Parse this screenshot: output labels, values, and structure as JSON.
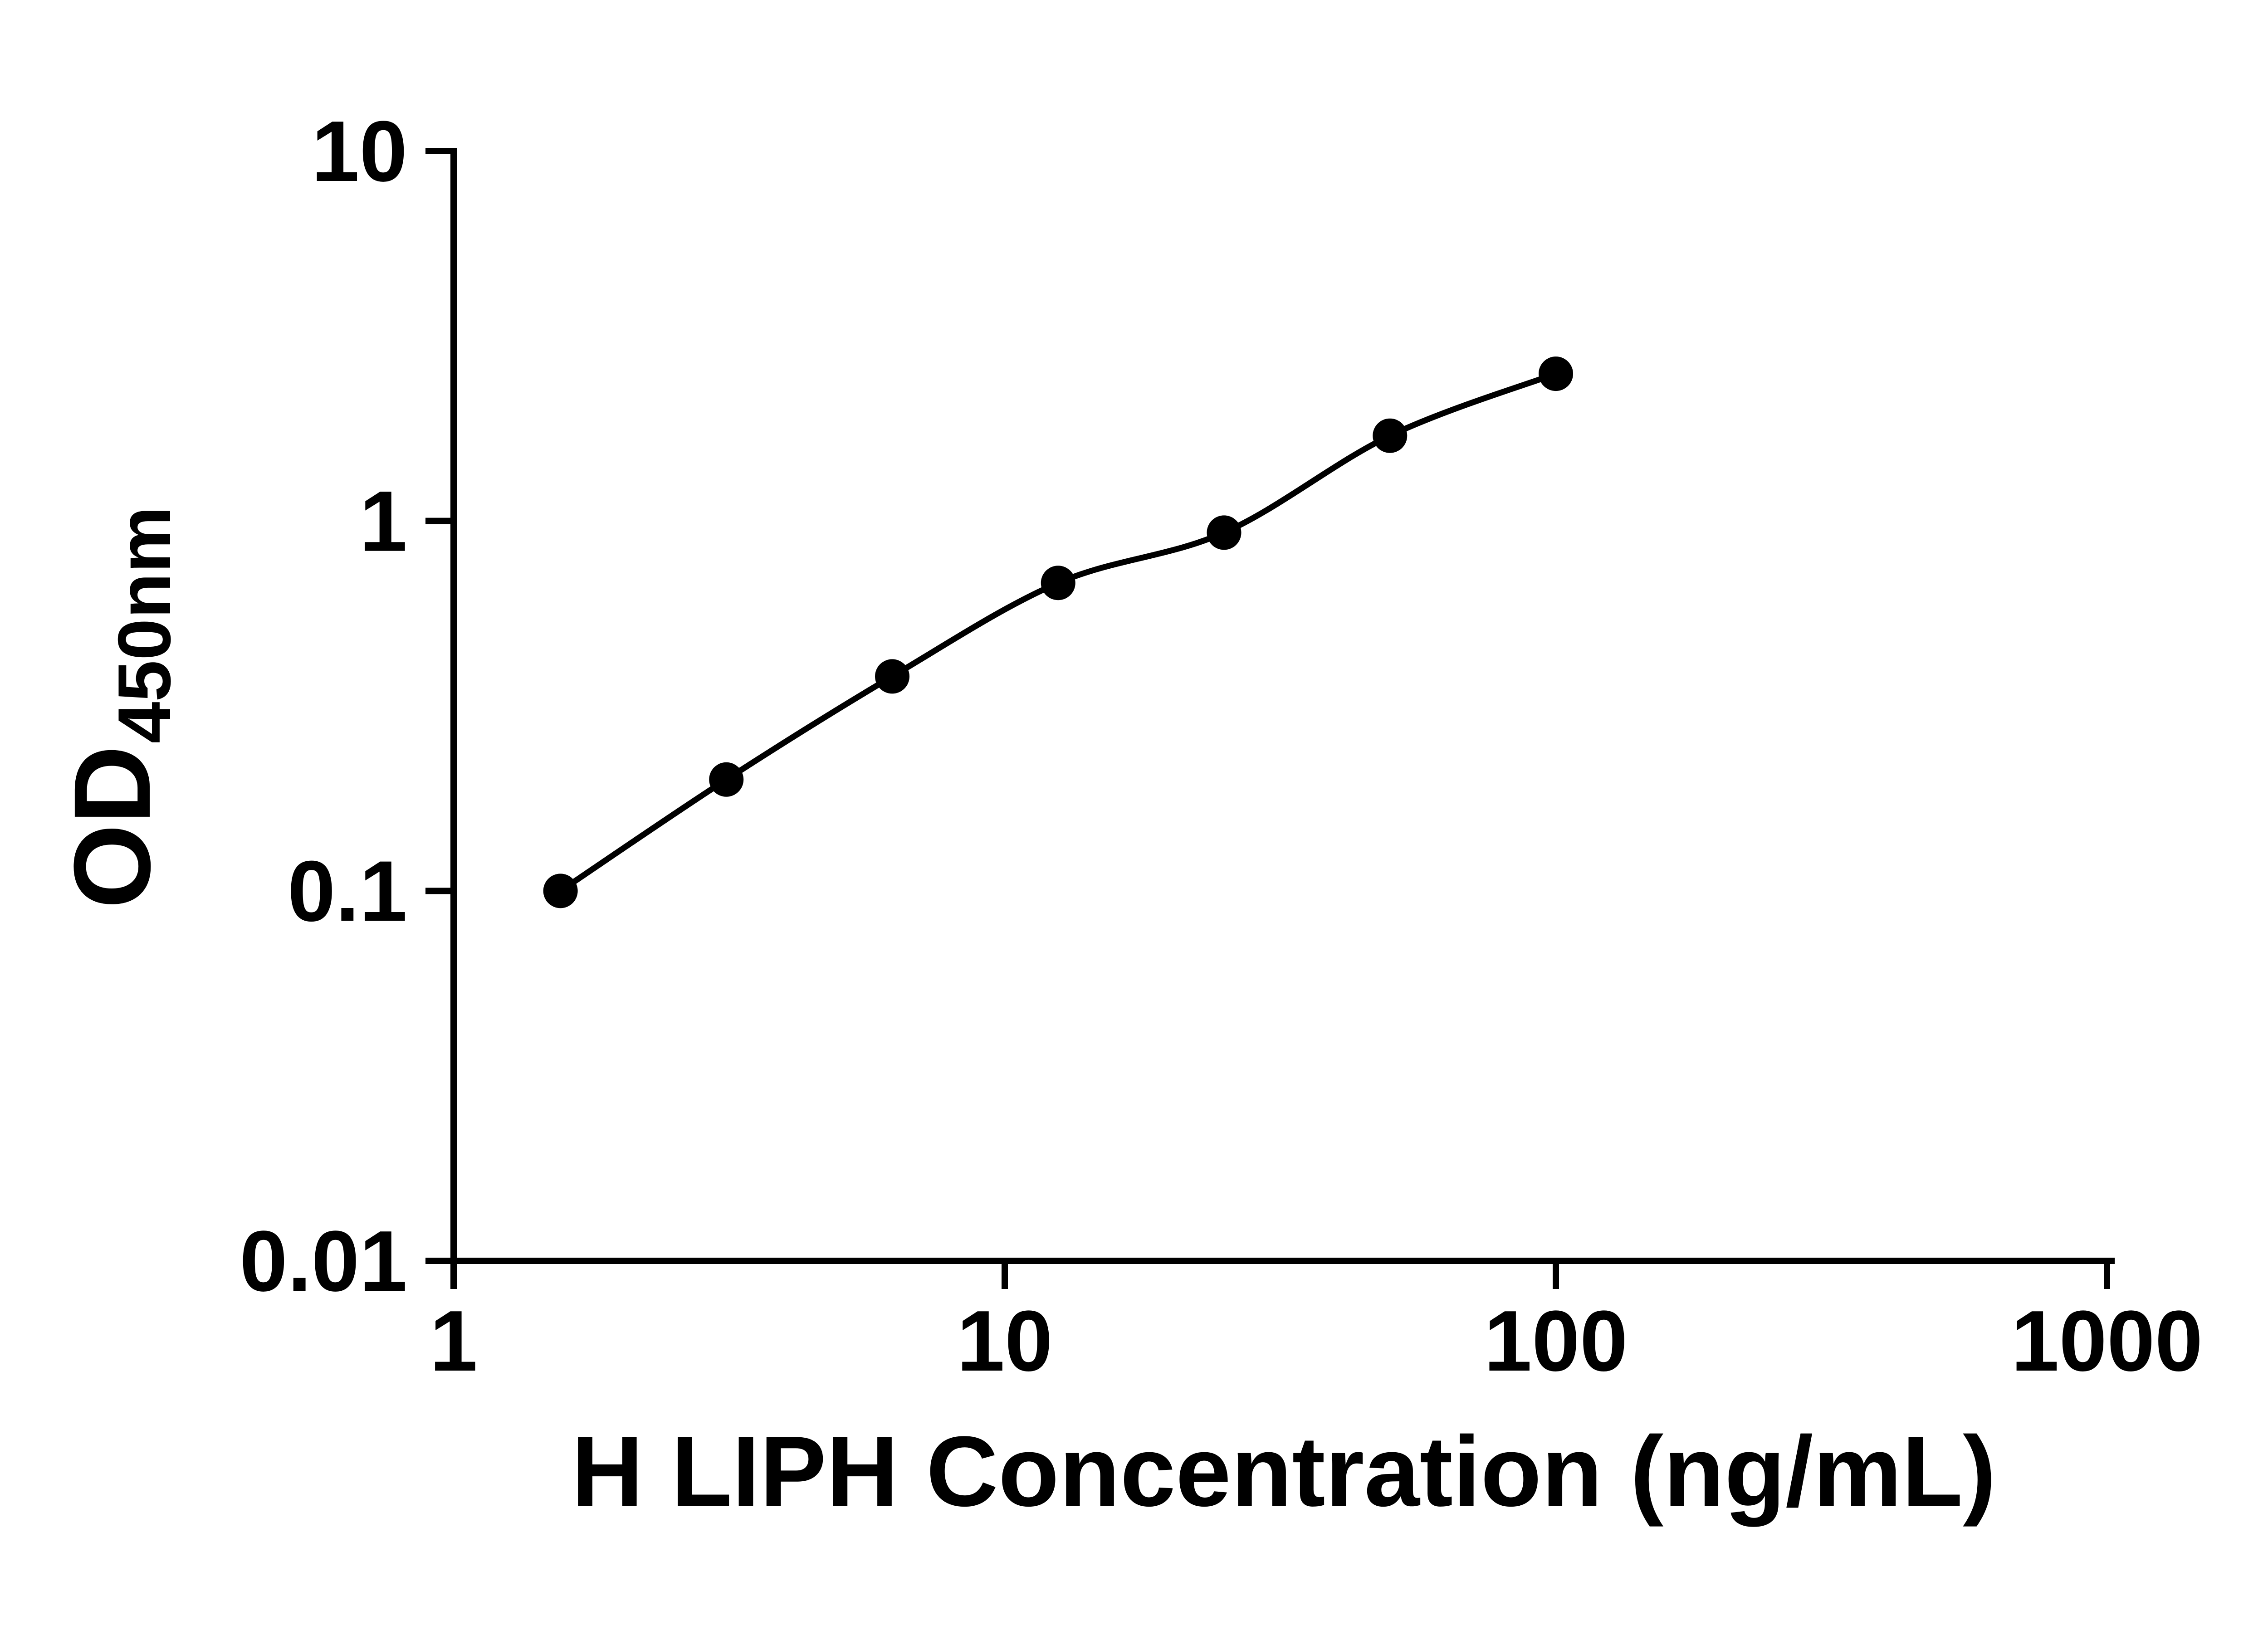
{
  "figure": {
    "background": "#ffffff"
  },
  "chart_data": {
    "type": "scatter",
    "title": "",
    "xlabel": "H LIPH Concentration (ng/mL)",
    "ylabel_main": "OD",
    "ylabel_sub": "450nm",
    "x_scale": "log",
    "y_scale": "log",
    "xlim": [
      1,
      1000
    ],
    "ylim": [
      0.01,
      10
    ],
    "x_ticks": [
      1,
      10,
      100,
      1000
    ],
    "x_tick_labels": [
      "1",
      "10",
      "100",
      "1000"
    ],
    "y_ticks": [
      0.01,
      0.1,
      1,
      10
    ],
    "y_tick_labels": [
      "0.01",
      "0.1",
      "1",
      "10"
    ],
    "x": [
      1.563,
      3.125,
      6.25,
      12.5,
      25,
      50,
      100
    ],
    "y": [
      0.1,
      0.2,
      0.38,
      0.68,
      0.93,
      1.7,
      2.5
    ],
    "grid": false,
    "legend": "none",
    "axis_color": "#000000",
    "marker_color": "#000000",
    "line_color": "#000000"
  }
}
